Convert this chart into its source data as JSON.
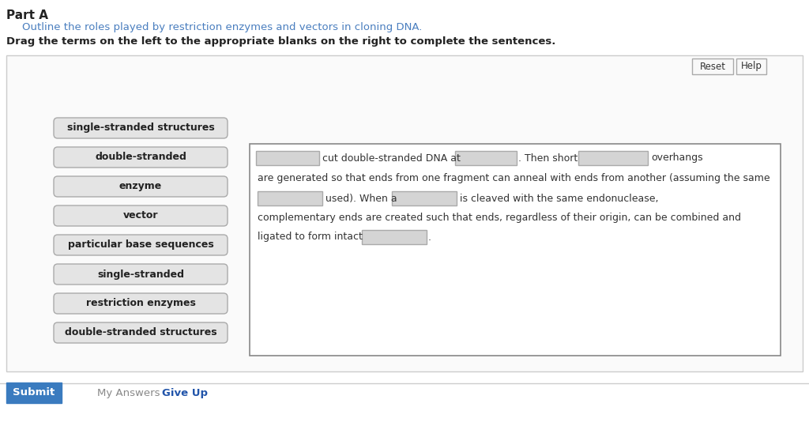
{
  "bg_color": "#ffffff",
  "part_a_label": "Part A",
  "subtitle": "Outline the roles played by restriction enzymes and vectors in cloning DNA.",
  "instruction": "Drag the terms on the left to the appropriate blanks on the right to complete the sentences.",
  "left_terms": [
    "single-stranded structures",
    "double-stranded",
    "enzyme",
    "vector",
    "particular base sequences",
    "single-stranded",
    "restriction enzymes",
    "double-stranded structures"
  ],
  "reset_label": "Reset",
  "help_label": "Help",
  "submit_label": "Submit",
  "my_answers_label": "My Answers",
  "give_up_label": "Give Up",
  "subtitle_color": "#4a7ebf",
  "link_color": "#2255aa",
  "instruction_color": "#222222",
  "term_box_bg": "#e4e4e4",
  "term_box_border": "#aaaaaa",
  "blank_box_bg": "#d4d4d4",
  "blank_box_border": "#aaaaaa",
  "outer_box_bg": "#ffffff",
  "outer_box_border": "#cccccc",
  "inner_right_box_bg": "#ffffff",
  "inner_right_box_border": "#888888",
  "sentence_color": "#333333",
  "submit_btn_color": "#3a7bbf",
  "submit_text_color": "#ffffff",
  "part_label_color": "#222222",
  "reset_btn_border": "#aaaaaa",
  "reset_btn_bg": "#f8f8f8",
  "my_answers_color": "#888888",
  "give_up_color": "#2255aa"
}
